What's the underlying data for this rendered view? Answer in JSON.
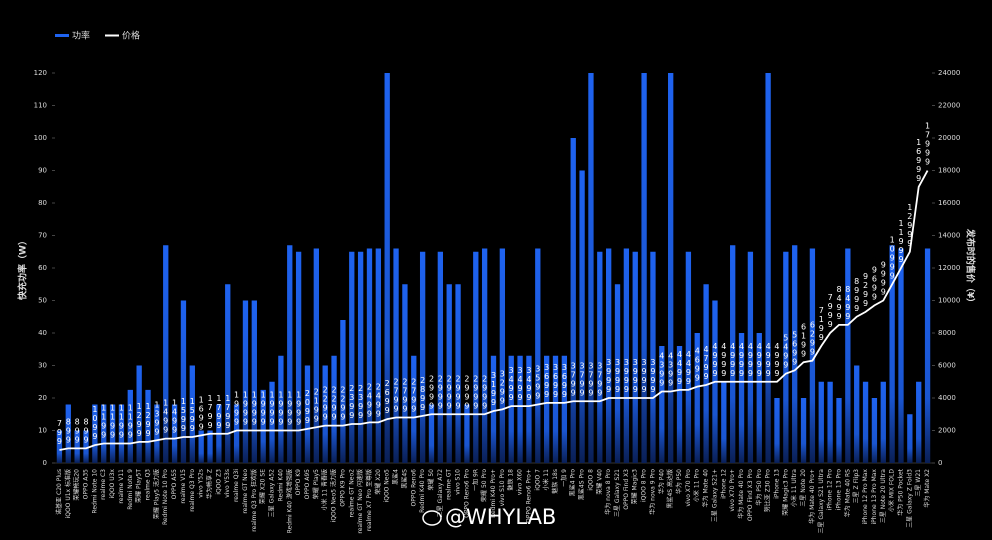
{
  "chart_data": {
    "type": "bar-line",
    "ylabel": "快充功率（W）",
    "y2label": "发布时的售价（¥）",
    "watermark": "@WHYLAB",
    "categories": [
      "诺基亚 C20 Plus",
      "iQOO U1x 标准版",
      "荣耀畅玩20",
      "OPPO A35",
      "Redmi Note 10",
      "realme C3",
      "iQOO U3x",
      "realme V11",
      "Redmi Note 9",
      "荣耀 Play5T",
      "realme Q3",
      "荣耀 Play5 活力版",
      "Redmi Note 10 Pro",
      "OPPO A55",
      "realme V15",
      "realme Q3 Pro",
      "vivo Y52s",
      "华为畅享 Z",
      "iQOO Z3",
      "vivo Y53s",
      "realme Q3i",
      "realme GT Neo",
      "realme Q3 Pro 狂欢版",
      "荣耀 X20 SE",
      "三星 Galaxy A52",
      "Redmi K40",
      "Redmi K40 游戏增强版",
      "OPPO K9",
      "OPPO A95",
      "荣耀 Play5",
      "小米 11 青春版",
      "iQOO Neo5 活力版",
      "OPPO K9 Pro",
      "realme GT Neo2",
      "realme GT Neo 闪速版",
      "realme X7 Pro 至尊版",
      "荣耀 X20",
      "iQOO Neo5",
      "黑鲨4",
      "黑鲨4S",
      "OPPO Reno6",
      "Redmi K40 Pro",
      "荣耀 50",
      "三星 Galaxy A72",
      "realme GT",
      "vivo S10",
      "OPPO Reno6 Pro",
      "一加 9R",
      "荣耀 50 Pro",
      "Redmi K40 Pro+",
      "vivo S10 Pro",
      "魅族 18",
      "vivo X60",
      "OPPO Reno6 Pro+",
      "iQOO 7",
      "小米 11",
      "魅族 18s",
      "一加 9",
      "黑鲨4 Pro",
      "黑鲨4S Pro",
      "iQOO 8",
      "荣耀 V40",
      "华为 nova 8 Pro",
      "三星 Galaxy S21",
      "OPPO Find X3",
      "荣耀 Magic3",
      "iQOO 8 Pro",
      "华为 nova 9 Pro",
      "华为 P40",
      "黑鲨4S 高达版",
      "华为 P50",
      "vivo X70 Pro",
      "小米 11 Pro",
      "华为 Mate 40",
      "三星 Galaxy S21+",
      "iPhone 12",
      "vivo X70 Pro+",
      "华为 Mate 40 Pro",
      "OPPO Find X3 Pro",
      "华为 P50 Pro",
      "努比亚 Z30 Pro",
      "iPhone 13",
      "荣耀 Magic3 Pro",
      "小米 11 Ultra",
      "三星 Note 20",
      "华为 Mate 40 Pro+",
      "三星 Galaxy S21 Ultra",
      "iPhone 12 Pro",
      "iPhone 13 Pro",
      "华为 Mate 40 RS",
      "三星 Z Flip3",
      "iPhone 12 Pro Max",
      "iPhone 13 Pro Max",
      "三星 Note 20 Ultra",
      "小米 MIX FOLD",
      "华为 P50 Pocket",
      "三星 Galaxy Z Fold3",
      "三星 W21",
      "华为 Mate X2"
    ],
    "series": [
      {
        "name": "功率",
        "color": "#1f63f0",
        "values": [
          10,
          18,
          10,
          10,
          18,
          18,
          18,
          18,
          22.5,
          30,
          22.5,
          18,
          67,
          18,
          50,
          30,
          10,
          10,
          18,
          55,
          18,
          50,
          50,
          22.5,
          25,
          33,
          67,
          65,
          30,
          66,
          30,
          33,
          44,
          65,
          65,
          66,
          66,
          120,
          66,
          55,
          33,
          65,
          18,
          65,
          55,
          55,
          18,
          65,
          66,
          33,
          66,
          33,
          33,
          33,
          66,
          33,
          33,
          33,
          100,
          90,
          120,
          65,
          66,
          55,
          66,
          65,
          120,
          65,
          36,
          120,
          36,
          65,
          40,
          55,
          50,
          25,
          67,
          40,
          65,
          40,
          120,
          20,
          65,
          67,
          20,
          66,
          25,
          25,
          20,
          66,
          30,
          25,
          20,
          25,
          67,
          66,
          15,
          25,
          66
        ]
      },
      {
        "name": "价格",
        "color": "#ffffff",
        "axis": "y2",
        "values": [
          799,
          899,
          899,
          899,
          1099,
          1199,
          1199,
          1199,
          1199,
          1299,
          1299,
          1399,
          1499,
          1499,
          1599,
          1599,
          1699,
          1799,
          1799,
          1799,
          1999,
          1999,
          1999,
          1999,
          1999,
          1999,
          1999,
          1999,
          2099,
          2199,
          2299,
          2299,
          2299,
          2399,
          2399,
          2499,
          2499,
          2699,
          2799,
          2799,
          2799,
          2899,
          2999,
          2999,
          2999,
          2999,
          2999,
          2999,
          2999,
          3199,
          3299,
          3499,
          3499,
          3499,
          3599,
          3699,
          3699,
          3699,
          3799,
          3799,
          3799,
          3799,
          3999,
          3999,
          3999,
          3999,
          3999,
          3999,
          4399,
          4399,
          4499,
          4499,
          4699,
          4799,
          4999,
          4999,
          4999,
          4999,
          4999,
          4999,
          4999,
          4999,
          5499,
          5699,
          6199,
          6299,
          7199,
          7999,
          8499,
          8499,
          8999,
          9299,
          9699,
          9999,
          10999,
          11999,
          12999,
          16999,
          17999
        ]
      }
    ],
    "ylim": [
      0,
      120
    ],
    "yticks": [
      0,
      10,
      20,
      30,
      40,
      50,
      60,
      70,
      80,
      90,
      100,
      110,
      120
    ],
    "y2lim": [
      0,
      24000
    ],
    "y2ticks": [
      0,
      2000,
      4000,
      6000,
      8000,
      10000,
      12000,
      14000,
      16000,
      18000,
      20000,
      22000,
      24000
    ]
  }
}
